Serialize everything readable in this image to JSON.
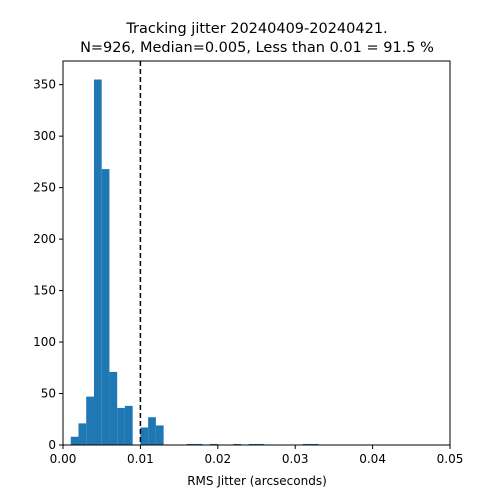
{
  "chart_data": {
    "type": "bar",
    "title_line1": "Tracking jitter 20240409-20240421.",
    "title_line2": "N=926, Median=0.005, Less than 0.01 = 91.5 %",
    "xlabel": "RMS Jitter (arcseconds)",
    "ylabel": "",
    "xlim": [
      0,
      0.05
    ],
    "ylim": [
      0,
      373
    ],
    "xticks": [
      0,
      0.01,
      0.02,
      0.03,
      0.04,
      0.05
    ],
    "xtick_labels": [
      "0.00",
      "0.01",
      "0.02",
      "0.03",
      "0.04",
      "0.05"
    ],
    "yticks": [
      0,
      50,
      100,
      150,
      200,
      250,
      300,
      350
    ],
    "ytick_labels": [
      "0",
      "50",
      "100",
      "150",
      "200",
      "250",
      "300",
      "350"
    ],
    "bar_color": "#1f77b4",
    "threshold_line": {
      "x": 0.01,
      "style": "dashed",
      "color": "#000000"
    },
    "bins": [
      {
        "x0": 0.001,
        "x1": 0.002,
        "count": 8
      },
      {
        "x0": 0.002,
        "x1": 0.003,
        "count": 21
      },
      {
        "x0": 0.003,
        "x1": 0.004,
        "count": 47
      },
      {
        "x0": 0.004,
        "x1": 0.005,
        "count": 355
      },
      {
        "x0": 0.005,
        "x1": 0.006,
        "count": 268
      },
      {
        "x0": 0.006,
        "x1": 0.007,
        "count": 71
      },
      {
        "x0": 0.007,
        "x1": 0.008,
        "count": 36
      },
      {
        "x0": 0.008,
        "x1": 0.009,
        "count": 38
      },
      {
        "x0": 0.01,
        "x1": 0.011,
        "count": 17
      },
      {
        "x0": 0.011,
        "x1": 0.012,
        "count": 27
      },
      {
        "x0": 0.012,
        "x1": 0.013,
        "count": 19
      },
      {
        "x0": 0.016,
        "x1": 0.018,
        "count": 1
      },
      {
        "x0": 0.019,
        "x1": 0.02,
        "count": 1
      },
      {
        "x0": 0.022,
        "x1": 0.023,
        "count": 1
      },
      {
        "x0": 0.024,
        "x1": 0.026,
        "count": 1
      },
      {
        "x0": 0.031,
        "x1": 0.033,
        "count": 1
      }
    ]
  }
}
